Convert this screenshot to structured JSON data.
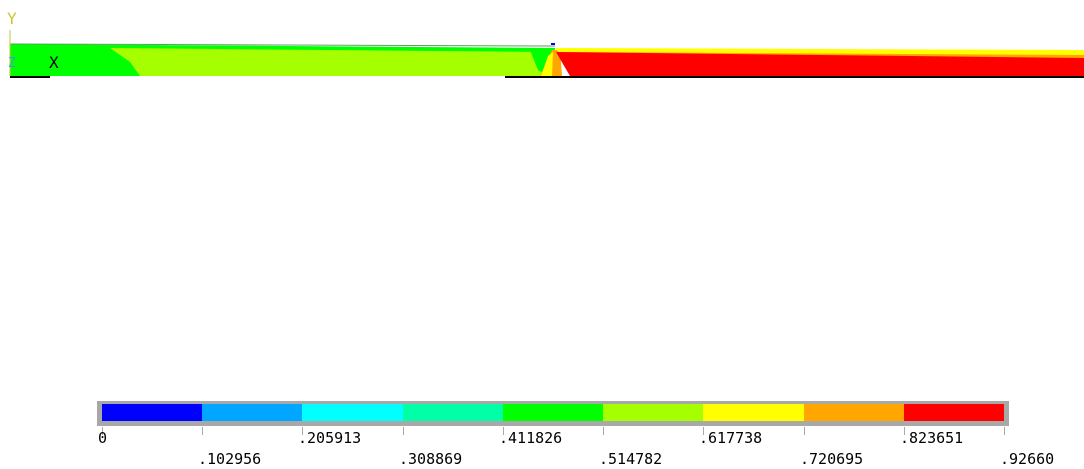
{
  "axis_triad": {
    "y_label": "Y",
    "x_label": "X",
    "z_label": "Z",
    "y_color": "#c8c832",
    "x_color": "#000000",
    "z_color": "#3fa0d8"
  },
  "legend": {
    "colors": [
      "#0000ff",
      "#00a6ff",
      "#00ffff",
      "#00ffa6",
      "#00ff00",
      "#a6ff00",
      "#ffff00",
      "#ffa600",
      "#ff0000"
    ],
    "frame_color": "#a8a8a8",
    "top_labels": [
      "0",
      ".205913",
      ".411826",
      ".617738",
      ".823651"
    ],
    "bottom_labels": [
      ".102956",
      ".308869",
      ".514782",
      ".720695",
      ".92660"
    ]
  }
}
